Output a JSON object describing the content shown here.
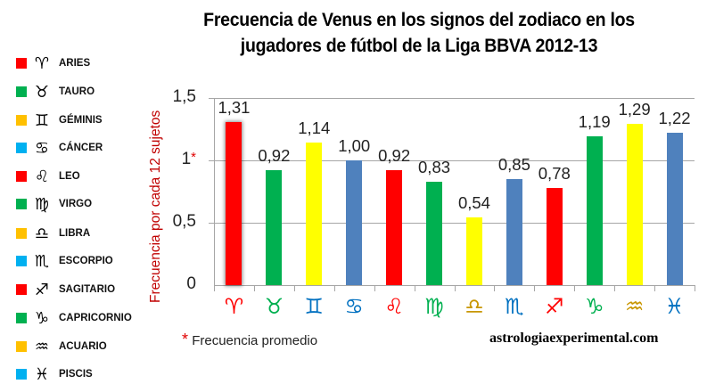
{
  "title_line1": "Frecuencia de Venus en los signos del zodiaco en los",
  "title_line2": "jugadores de fútbol de la Liga BBVA 2012-13",
  "legend": [
    {
      "glyph": "♈",
      "label": "ARIES",
      "color": "#ff0000"
    },
    {
      "glyph": "♉",
      "label": "TAURO",
      "color": "#00b050"
    },
    {
      "glyph": "♊",
      "label": "GÉMINIS",
      "color": "#ffc000"
    },
    {
      "glyph": "♋",
      "label": "CÁNCER",
      "color": "#00b0f0"
    },
    {
      "glyph": "♌",
      "label": "LEO",
      "color": "#ff0000"
    },
    {
      "glyph": "♍",
      "label": "VIRGO",
      "color": "#00b050"
    },
    {
      "glyph": "♎",
      "label": "LIBRA",
      "color": "#ffc000"
    },
    {
      "glyph": "♏",
      "label": "ESCORPIO",
      "color": "#00b0f0"
    },
    {
      "glyph": "♐",
      "label": "SAGITARIO",
      "color": "#ff0000"
    },
    {
      "glyph": "♑",
      "label": "CAPRICORNIO",
      "color": "#00b050"
    },
    {
      "glyph": "♒",
      "label": "ACUARIO",
      "color": "#ffc000"
    },
    {
      "glyph": "♓",
      "label": "PISCIS",
      "color": "#00b0f0"
    }
  ],
  "ylabel": "Frecuencia por cada 12 sujetos",
  "yticks": [
    {
      "label": "1,5",
      "asterisk": ""
    },
    {
      "label": "1",
      "asterisk": "*"
    },
    {
      "label": "0,5",
      "asterisk": ""
    },
    {
      "label": "0",
      "asterisk": ""
    }
  ],
  "footnote_asterisk": "*",
  "footnote_text": "Frecuencia promedio",
  "site": "astrologiaexperimental.com",
  "chart_data": {
    "type": "bar",
    "title": "Frecuencia de Venus en los signos del zodiaco en los jugadores de fútbol de la Liga BBVA 2012-13",
    "xlabel": "",
    "ylabel": "Frecuencia por cada 12 sujetos",
    "categories": [
      "Aries",
      "Tauro",
      "Géminis",
      "Cáncer",
      "Leo",
      "Virgo",
      "Libra",
      "Escorpio",
      "Sagitario",
      "Capricornio",
      "Acuario",
      "Piscis"
    ],
    "category_glyphs": [
      "♈",
      "♉",
      "♊",
      "♋",
      "♌",
      "♍",
      "♎",
      "♏",
      "♐",
      "♑",
      "♒",
      "♓"
    ],
    "glyph_colors": [
      "#ff0000",
      "#00b050",
      "#0070c0",
      "#0070c0",
      "#ff0000",
      "#00b050",
      "#c89600",
      "#0070c0",
      "#ff0000",
      "#00b050",
      "#c89600",
      "#0070c0"
    ],
    "values": [
      1.31,
      0.92,
      1.14,
      1.0,
      0.92,
      0.83,
      0.54,
      0.85,
      0.78,
      1.19,
      1.29,
      1.22
    ],
    "value_labels": [
      "1,31",
      "0,92",
      "1,14",
      "1,00",
      "0,92",
      "0,83",
      "0,54",
      "0,85",
      "0,78",
      "1,19",
      "1,29",
      "1,22"
    ],
    "bar_colors": [
      "#ff0000",
      "#00b050",
      "#ffff00",
      "#4f81bd",
      "#ff0000",
      "#00b050",
      "#ffff00",
      "#4f81bd",
      "#ff0000",
      "#00b050",
      "#ffff00",
      "#4f81bd"
    ],
    "ylim": [
      0,
      1.5
    ],
    "yticks": [
      0,
      0.5,
      1,
      1.5
    ],
    "ytick_labels": [
      "0",
      "0,5",
      "1*",
      "1,5"
    ],
    "grid": true,
    "legend_position": "left",
    "annotations": [
      "* Frecuencia promedio",
      "astrologiaexperimental.com"
    ]
  }
}
